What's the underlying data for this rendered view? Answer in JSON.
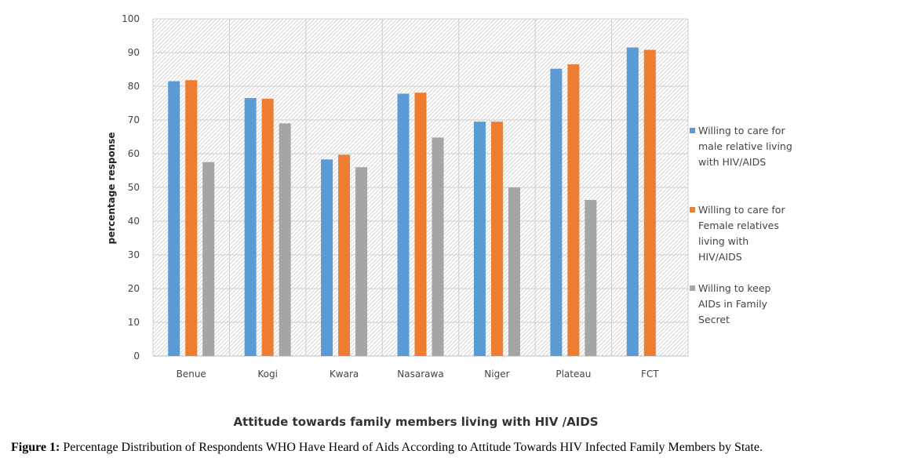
{
  "chart_data": {
    "type": "bar",
    "xlabel": "Attitude towards  family members living with HIV /AIDS",
    "ylabel": "percentage  response",
    "ylim": [
      0,
      100
    ],
    "yticks": [
      0,
      10,
      20,
      30,
      40,
      50,
      60,
      70,
      80,
      90,
      100
    ],
    "grid": true,
    "legend_position": "right",
    "categories": [
      "Benue",
      "Kogi",
      "Kwara",
      "Nasarawa",
      "Niger",
      "Plateau",
      "FCT"
    ],
    "series": [
      {
        "name": "Willing to care for male relative living with HIV/AIDS",
        "legend_lines": [
          "Willing to care for",
          "male relative living",
          "with HIV/AIDS"
        ],
        "color": "#5B9BD5",
        "values": [
          81.5,
          76.5,
          58.3,
          77.8,
          69.5,
          85.2,
          91.5
        ]
      },
      {
        "name": "Willing to care for Female relatives living with HIV/AIDS",
        "legend_lines": [
          "Willing to care for",
          "Female relatives",
          "living with",
          "HIV/AIDS"
        ],
        "color": "#ED7D31",
        "values": [
          81.8,
          76.3,
          59.7,
          78.1,
          69.5,
          86.5,
          90.8
        ]
      },
      {
        "name": "Willing to keep AIDs in Family Secret",
        "legend_lines": [
          "Willing to keep",
          "AIDs in Family",
          "Secret"
        ],
        "color": "#A5A5A5",
        "values": [
          57.5,
          69.0,
          56.0,
          64.8,
          50.0,
          46.3,
          null
        ]
      }
    ]
  },
  "caption": {
    "label": "Figure 1:",
    "text": " Percentage Distribution of Respondents WHO Have Heard of Aids According to Attitude Towards HIV Infected Family Members by State."
  }
}
